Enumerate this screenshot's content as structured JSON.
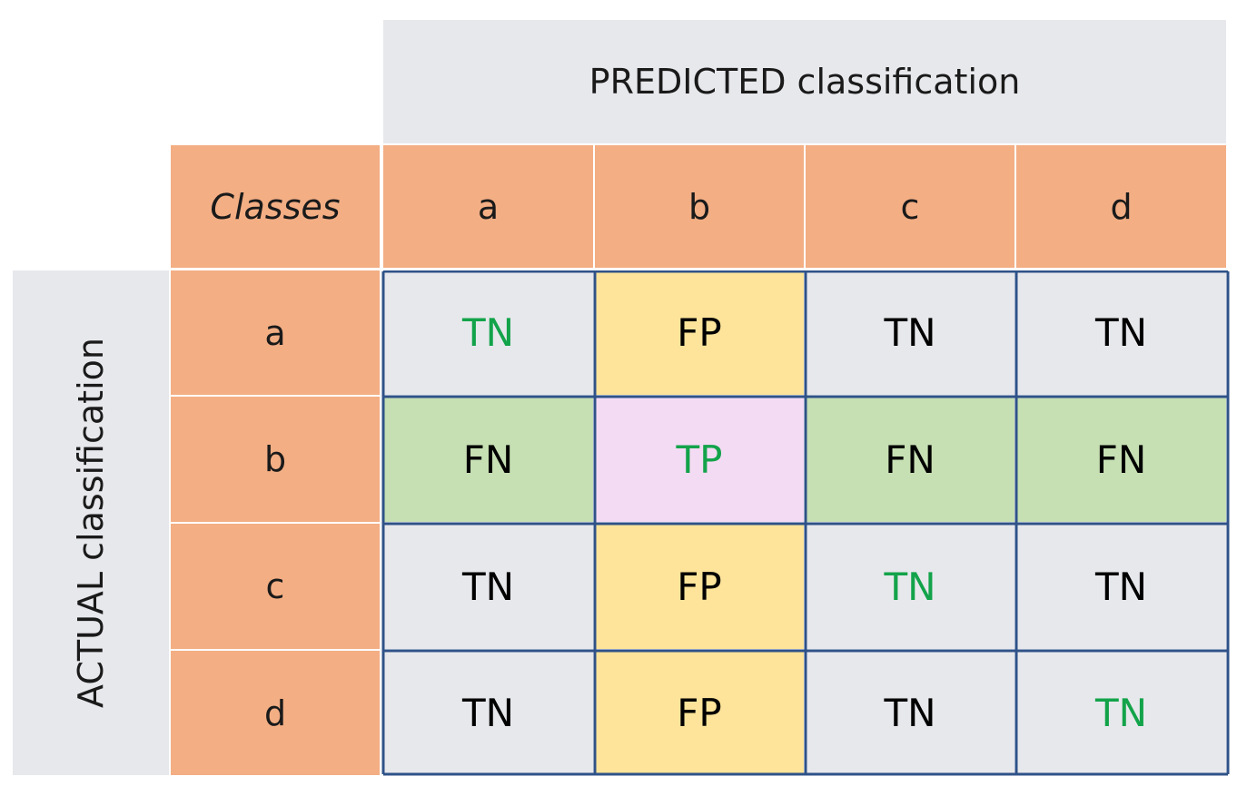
{
  "predicted_label": "PREDICTED classification",
  "actual_label": "ACTUAL classification",
  "classes_label": "Classes",
  "columns": [
    "a",
    "b",
    "c",
    "d"
  ],
  "rows": [
    {
      "label": "a",
      "cells": [
        {
          "text": "TN",
          "bg": "#e7e8ec",
          "fg": "#13a34a"
        },
        {
          "text": "FP",
          "bg": "#fde49a",
          "fg": "#000000"
        },
        {
          "text": "TN",
          "bg": "#e7e8ec",
          "fg": "#000000"
        },
        {
          "text": "TN",
          "bg": "#e7e8ec",
          "fg": "#000000"
        }
      ]
    },
    {
      "label": "b",
      "cells": [
        {
          "text": "FN",
          "bg": "#c6dfb3",
          "fg": "#000000"
        },
        {
          "text": "TP",
          "bg": "#f4dbf4",
          "fg": "#13a34a"
        },
        {
          "text": "FN",
          "bg": "#c6dfb3",
          "fg": "#000000"
        },
        {
          "text": "FN",
          "bg": "#c6dfb3",
          "fg": "#000000"
        }
      ]
    },
    {
      "label": "c",
      "cells": [
        {
          "text": "TN",
          "bg": "#e7e8ec",
          "fg": "#000000"
        },
        {
          "text": "FP",
          "bg": "#fde49a",
          "fg": "#000000"
        },
        {
          "text": "TN",
          "bg": "#e7e8ec",
          "fg": "#13a34a"
        },
        {
          "text": "TN",
          "bg": "#e7e8ec",
          "fg": "#000000"
        }
      ]
    },
    {
      "label": "d",
      "cells": [
        {
          "text": "TN",
          "bg": "#e7e8ec",
          "fg": "#000000"
        },
        {
          "text": "FP",
          "bg": "#fde49a",
          "fg": "#000000"
        },
        {
          "text": "TN",
          "bg": "#e7e8ec",
          "fg": "#000000"
        },
        {
          "text": "TN",
          "bg": "#e7e8ec",
          "fg": "#13a34a"
        }
      ]
    }
  ],
  "colors": {
    "header": "#f3ae84",
    "neutral": "#e7e8ec",
    "false_positive": "#fde49a",
    "false_negative": "#c6dfb3",
    "true_positive": "#f4dbf4",
    "correct_text": "#13a34a",
    "grid_border": "#2f5288"
  }
}
